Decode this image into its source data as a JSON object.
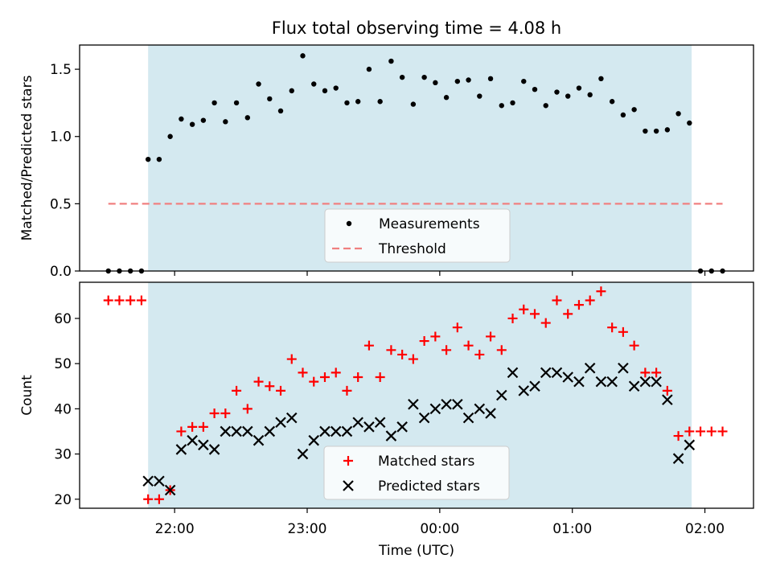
{
  "figure": {
    "title": "Flux total observing time = 4.08 h"
  },
  "chart_data": [
    {
      "type": "scatter",
      "panel": "top",
      "title": "Flux total observing time = 4.08 h",
      "xlabel": "",
      "ylabel": "Matched/Predicted stars",
      "ylim": [
        0,
        1.68
      ],
      "yticks": [
        0.0,
        0.5,
        1.0,
        1.5
      ],
      "ytick_labels": [
        "0.0",
        "0.5",
        "1.0",
        "1.5"
      ],
      "observing_window": {
        "start": "21:48",
        "end": "01:54",
        "color": "#d4e9f0"
      },
      "legend": {
        "placement": "lower-center",
        "entries": [
          "Measurements",
          "Threshold"
        ]
      },
      "series": [
        {
          "name": "Measurements",
          "kind": "points",
          "color": "#000000",
          "x": [
            "21:30",
            "21:35",
            "21:40",
            "21:45",
            "21:48",
            "21:53",
            "21:58",
            "22:03",
            "22:08",
            "22:13",
            "22:18",
            "22:23",
            "22:28",
            "22:33",
            "22:38",
            "22:43",
            "22:48",
            "22:53",
            "22:58",
            "23:03",
            "23:08",
            "23:13",
            "23:18",
            "23:23",
            "23:28",
            "23:33",
            "23:38",
            "23:43",
            "23:48",
            "23:53",
            "23:58",
            "00:03",
            "00:08",
            "00:13",
            "00:18",
            "00:23",
            "00:28",
            "00:33",
            "00:38",
            "00:43",
            "00:48",
            "00:53",
            "00:58",
            "01:03",
            "01:08",
            "01:13",
            "01:18",
            "01:23",
            "01:28",
            "01:33",
            "01:38",
            "01:43",
            "01:48",
            "01:53",
            "01:58",
            "02:03",
            "02:08"
          ],
          "y": [
            0.0,
            0.0,
            0.0,
            0.0,
            0.83,
            0.83,
            1.0,
            1.13,
            1.09,
            1.12,
            1.25,
            1.11,
            1.25,
            1.14,
            1.39,
            1.28,
            1.19,
            1.34,
            1.6,
            1.39,
            1.34,
            1.36,
            1.25,
            1.26,
            1.5,
            1.26,
            1.56,
            1.44,
            1.24,
            1.44,
            1.4,
            1.29,
            1.41,
            1.42,
            1.3,
            1.43,
            1.23,
            1.25,
            1.41,
            1.35,
            1.23,
            1.33,
            1.3,
            1.36,
            1.31,
            1.43,
            1.26,
            1.16,
            1.2,
            1.04,
            1.04,
            1.05,
            1.17,
            1.1,
            0.0,
            0.0,
            0.0
          ]
        },
        {
          "name": "Threshold",
          "kind": "dashed-line",
          "color": "#f08080",
          "x": [
            "21:30",
            "02:08"
          ],
          "y": [
            0.5,
            0.5
          ]
        }
      ]
    },
    {
      "type": "scatter",
      "panel": "bottom",
      "xlabel": "Time (UTC)",
      "ylabel": "Count",
      "xlim": [
        "21:17",
        "02:22"
      ],
      "xticks": [
        "22:00",
        "23:00",
        "00:00",
        "01:00",
        "02:00"
      ],
      "ylim": [
        18,
        68
      ],
      "yticks": [
        20,
        30,
        40,
        50,
        60
      ],
      "ytick_labels": [
        "20",
        "30",
        "40",
        "50",
        "60"
      ],
      "observing_window": {
        "start": "21:48",
        "end": "01:54",
        "color": "#d4e9f0"
      },
      "legend": {
        "placement": "lower-center",
        "entries": [
          "Matched stars",
          "Predicted stars"
        ]
      },
      "series": [
        {
          "name": "Matched stars",
          "marker": "plus",
          "color": "#ff0000",
          "x": [
            "21:30",
            "21:35",
            "21:40",
            "21:45",
            "21:48",
            "21:53",
            "21:58",
            "22:03",
            "22:08",
            "22:13",
            "22:18",
            "22:23",
            "22:28",
            "22:33",
            "22:38",
            "22:43",
            "22:48",
            "22:53",
            "22:58",
            "23:03",
            "23:08",
            "23:13",
            "23:18",
            "23:23",
            "23:28",
            "23:33",
            "23:38",
            "23:43",
            "23:48",
            "23:53",
            "23:58",
            "00:03",
            "00:08",
            "00:13",
            "00:18",
            "00:23",
            "00:28",
            "00:33",
            "00:38",
            "00:43",
            "00:48",
            "00:53",
            "00:58",
            "01:03",
            "01:08",
            "01:13",
            "01:18",
            "01:23",
            "01:28",
            "01:33",
            "01:38",
            "01:43",
            "01:48",
            "01:53",
            "01:58",
            "02:03",
            "02:08"
          ],
          "y": [
            64,
            64,
            64,
            64,
            20,
            20,
            22,
            35,
            36,
            36,
            39,
            39,
            44,
            40,
            46,
            45,
            44,
            51,
            48,
            46,
            47,
            48,
            44,
            47,
            54,
            47,
            53,
            52,
            51,
            55,
            56,
            53,
            58,
            54,
            52,
            56,
            53,
            60,
            62,
            61,
            59,
            64,
            61,
            63,
            64,
            66,
            58,
            57,
            54,
            48,
            48,
            44,
            34,
            35,
            35,
            35,
            35
          ]
        },
        {
          "name": "Predicted stars",
          "marker": "x",
          "color": "#000000",
          "x": [
            "21:48",
            "21:53",
            "21:58",
            "22:03",
            "22:08",
            "22:13",
            "22:18",
            "22:23",
            "22:28",
            "22:33",
            "22:38",
            "22:43",
            "22:48",
            "22:53",
            "22:58",
            "23:03",
            "23:08",
            "23:13",
            "23:18",
            "23:23",
            "23:28",
            "23:33",
            "23:38",
            "23:43",
            "23:48",
            "23:53",
            "23:58",
            "00:03",
            "00:08",
            "00:13",
            "00:18",
            "00:23",
            "00:28",
            "00:33",
            "00:38",
            "00:43",
            "00:48",
            "00:53",
            "00:58",
            "01:03",
            "01:08",
            "01:13",
            "01:18",
            "01:23",
            "01:28",
            "01:33",
            "01:38",
            "01:43",
            "01:48",
            "01:53"
          ],
          "y": [
            24,
            24,
            22,
            31,
            33,
            32,
            31,
            35,
            35,
            35,
            33,
            35,
            37,
            38,
            30,
            33,
            35,
            35,
            35,
            37,
            36,
            37,
            34,
            36,
            41,
            38,
            40,
            41,
            41,
            38,
            40,
            39,
            43,
            48,
            44,
            45,
            48,
            48,
            47,
            46,
            49,
            46,
            46,
            49,
            45,
            46,
            46,
            42,
            29,
            32
          ]
        }
      ]
    }
  ]
}
